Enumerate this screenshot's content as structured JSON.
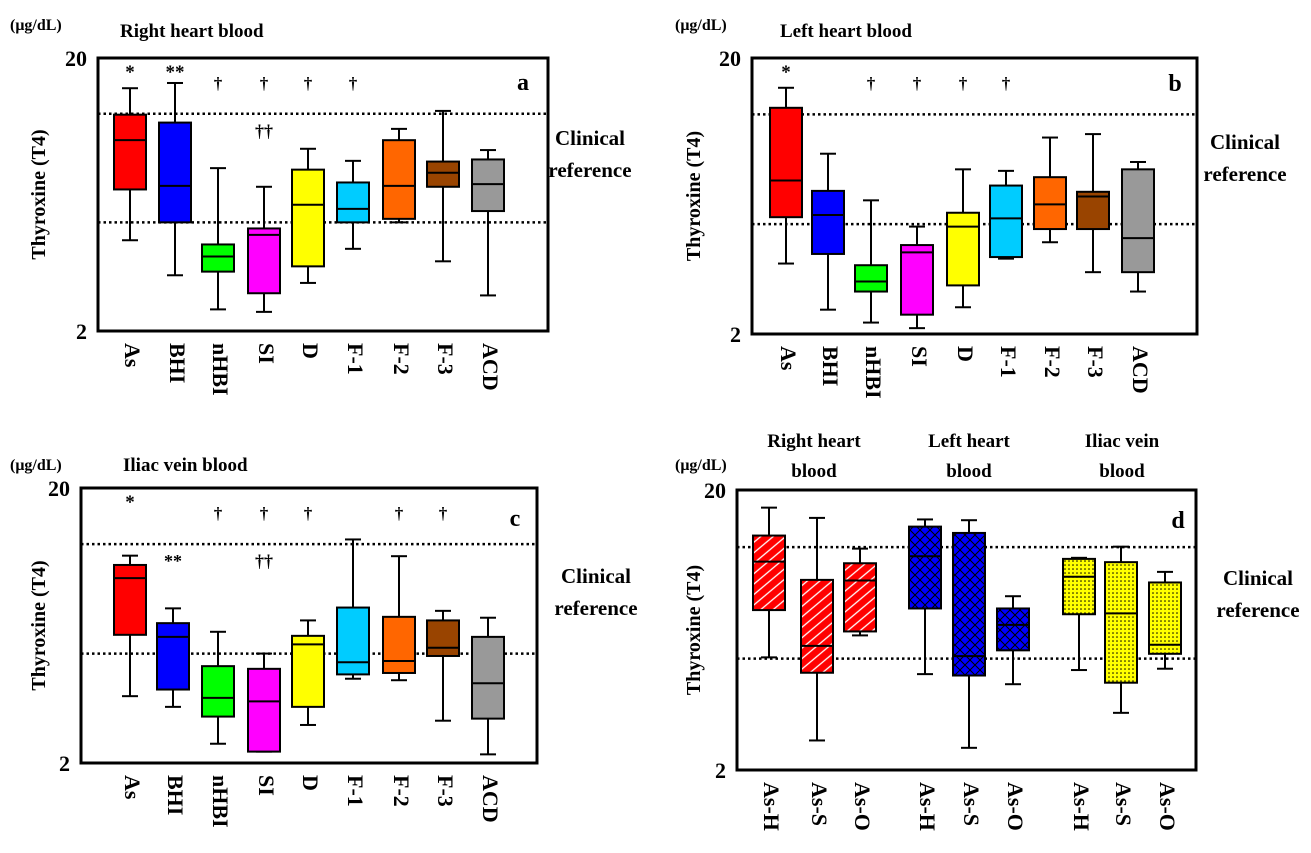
{
  "figure": {
    "unit_label": "(μg/dL)",
    "ylabel": "Thyroxine (T4)",
    "reference_label_line1": "Clinical",
    "reference_label_line2": "reference"
  },
  "chart_data": [
    {
      "panel": "a",
      "type": "box",
      "title": "Right heart blood",
      "ylabel": "Thyroxine (T4)",
      "yscale": "log",
      "ylim": [
        2,
        20
      ],
      "y_ticks": [
        "2",
        "20"
      ],
      "reference_range": [
        5.0,
        12.5
      ],
      "categories": [
        "As",
        "BHI",
        "nHBI",
        "SI",
        "D",
        "F-1",
        "F-2",
        "F-3",
        "ACD"
      ],
      "boxes": [
        {
          "label": "As",
          "color": "#ff0000",
          "whisker_low": 4.3,
          "q1": 6.6,
          "median": 10.0,
          "q3": 12.4,
          "whisker_high": 15.5,
          "annotation": "*"
        },
        {
          "label": "BHI",
          "color": "#0000ff",
          "whisker_low": 3.2,
          "q1": 5.0,
          "median": 6.8,
          "q3": 11.6,
          "whisker_high": 16.2,
          "annotation": "**"
        },
        {
          "label": "nHBI",
          "color": "#00ff00",
          "whisker_low": 2.4,
          "q1": 3.3,
          "median": 3.75,
          "q3": 4.15,
          "whisker_high": 7.9,
          "annotation": "†"
        },
        {
          "label": "SI",
          "color": "#ff00ff",
          "whisker_low": 2.35,
          "q1": 2.75,
          "median": 4.5,
          "q3": 4.75,
          "whisker_high": 6.75,
          "annotation": "†",
          "annotation2": "††"
        },
        {
          "label": "D",
          "color": "#ffff00",
          "whisker_low": 3.0,
          "q1": 3.45,
          "median": 5.8,
          "q3": 7.8,
          "whisker_high": 9.3,
          "annotation": "†"
        },
        {
          "label": "F-1",
          "color": "#00ccff",
          "whisker_low": 4.0,
          "q1": 5.0,
          "median": 5.6,
          "q3": 7.0,
          "whisker_high": 8.4,
          "annotation": "†"
        },
        {
          "label": "F-2",
          "color": "#ff6600",
          "whisker_low": 5.0,
          "q1": 5.15,
          "median": 6.8,
          "q3": 10.0,
          "whisker_high": 11.0
        },
        {
          "label": "F-3",
          "color": "#994400",
          "whisker_low": 3.6,
          "q1": 6.75,
          "median": 7.6,
          "q3": 8.35,
          "whisker_high": 12.8
        },
        {
          "label": "ACD",
          "color": "#999999",
          "whisker_low": 2.7,
          "q1": 5.5,
          "median": 6.9,
          "q3": 8.5,
          "whisker_high": 9.2
        }
      ]
    },
    {
      "panel": "b",
      "type": "box",
      "title": "Left heart blood",
      "ylabel": "Thyroxine (T4)",
      "yscale": "log",
      "ylim": [
        2,
        20
      ],
      "y_ticks": [
        "2",
        "20"
      ],
      "reference_range": [
        5.0,
        12.5
      ],
      "categories": [
        "As",
        "BHI",
        "nHBI",
        "SI",
        "D",
        "F-1",
        "F-2",
        "F-3",
        "ACD"
      ],
      "boxes": [
        {
          "label": "As",
          "color": "#ff0000",
          "whisker_low": 3.6,
          "q1": 5.3,
          "median": 7.2,
          "q3": 13.2,
          "whisker_high": 15.6,
          "annotation": "*"
        },
        {
          "label": "BHI",
          "color": "#0000ff",
          "whisker_low": 2.45,
          "q1": 3.9,
          "median": 5.4,
          "q3": 6.6,
          "whisker_high": 9.0
        },
        {
          "label": "nHBI",
          "color": "#00ff00",
          "whisker_low": 2.2,
          "q1": 2.85,
          "median": 3.1,
          "q3": 3.55,
          "whisker_high": 6.1,
          "annotation": "†"
        },
        {
          "label": "SI",
          "color": "#ff00ff",
          "whisker_low": 2.1,
          "q1": 2.35,
          "median": 3.95,
          "q3": 4.2,
          "whisker_high": 4.9,
          "annotation": "†"
        },
        {
          "label": "D",
          "color": "#ffff00",
          "whisker_low": 2.5,
          "q1": 3.0,
          "median": 4.9,
          "q3": 5.5,
          "whisker_high": 7.9,
          "annotation": "†"
        },
        {
          "label": "F-1",
          "color": "#00ccff",
          "whisker_low": 3.75,
          "q1": 3.8,
          "median": 5.25,
          "q3": 6.9,
          "whisker_high": 7.8,
          "annotation": "†"
        },
        {
          "label": "F-2",
          "color": "#ff6600",
          "whisker_low": 4.3,
          "q1": 4.8,
          "median": 5.9,
          "q3": 7.4,
          "whisker_high": 10.3
        },
        {
          "label": "F-3",
          "color": "#994400",
          "whisker_low": 3.35,
          "q1": 4.8,
          "median": 6.3,
          "q3": 6.55,
          "whisker_high": 10.6
        },
        {
          "label": "ACD",
          "color": "#999999",
          "whisker_low": 2.85,
          "q1": 3.35,
          "median": 4.45,
          "q3": 7.9,
          "whisker_high": 8.4
        }
      ]
    },
    {
      "panel": "c",
      "type": "box",
      "title": "Iliac vein blood",
      "ylabel": "Thyroxine (T4)",
      "yscale": "log",
      "ylim": [
        2,
        20
      ],
      "y_ticks": [
        "2",
        "20"
      ],
      "reference_range": [
        5.0,
        12.5
      ],
      "categories": [
        "As",
        "BHI",
        "nHBI",
        "SI",
        "D",
        "F-1",
        "F-2",
        "F-3",
        "ACD"
      ],
      "boxes": [
        {
          "label": "As",
          "color": "#ff0000",
          "whisker_low": 3.5,
          "q1": 5.85,
          "median": 9.4,
          "q3": 10.5,
          "whisker_high": 11.35,
          "annotation": "*"
        },
        {
          "label": "BHI",
          "color": "#0000ff",
          "whisker_low": 3.2,
          "q1": 3.7,
          "median": 5.75,
          "q3": 6.45,
          "whisker_high": 7.3,
          "annotation2": "**"
        },
        {
          "label": "nHBI",
          "color": "#00ff00",
          "whisker_low": 2.35,
          "q1": 2.95,
          "median": 3.45,
          "q3": 4.5,
          "whisker_high": 6.0,
          "annotation": "†"
        },
        {
          "label": "SI",
          "color": "#ff00ff",
          "whisker_low": 2.2,
          "q1": 2.2,
          "median": 3.35,
          "q3": 4.4,
          "whisker_high": 5.0,
          "annotation": "†",
          "annotation2": "††"
        },
        {
          "label": "D",
          "color": "#ffff00",
          "whisker_low": 2.75,
          "q1": 3.2,
          "median": 5.4,
          "q3": 5.8,
          "whisker_high": 6.6,
          "annotation": "†"
        },
        {
          "label": "F-1",
          "color": "#00ccff",
          "whisker_low": 4.05,
          "q1": 4.2,
          "median": 4.65,
          "q3": 7.35,
          "whisker_high": 13.0
        },
        {
          "label": "F-2",
          "color": "#ff6600",
          "whisker_low": 4.0,
          "q1": 4.25,
          "median": 4.7,
          "q3": 6.8,
          "whisker_high": 11.3,
          "annotation": "†"
        },
        {
          "label": "F-3",
          "color": "#994400",
          "whisker_low": 2.85,
          "q1": 4.9,
          "median": 5.25,
          "q3": 6.6,
          "whisker_high": 7.15,
          "annotation": "†"
        },
        {
          "label": "ACD",
          "color": "#999999",
          "whisker_low": 2.15,
          "q1": 2.9,
          "median": 3.9,
          "q3": 5.75,
          "whisker_high": 6.75
        }
      ]
    },
    {
      "panel": "d",
      "type": "box",
      "title": "",
      "ylabel": "Thyroxine (T4)",
      "yscale": "log",
      "ylim": [
        2,
        20
      ],
      "y_ticks": [
        "2",
        "20"
      ],
      "reference_range": [
        5.0,
        12.5
      ],
      "groups": [
        {
          "title_line1": "Right heart",
          "title_line2": "blood",
          "color": "#ff0000"
        },
        {
          "title_line1": "Left heart",
          "title_line2": "blood",
          "color": "#0000ff"
        },
        {
          "title_line1": "Iliac vein",
          "title_line2": "blood",
          "color": "#ffff00"
        }
      ],
      "categories": [
        "As-H",
        "As-S",
        "As-O",
        "As-H",
        "As-S",
        "As-O",
        "As-H",
        "As-S",
        "As-O"
      ],
      "boxes": [
        {
          "label": "As-H",
          "group": 0,
          "color": "#ff0000",
          "pattern": "hatch",
          "whisker_low": 5.05,
          "q1": 7.45,
          "median": 11.1,
          "q3": 13.75,
          "whisker_high": 17.3
        },
        {
          "label": "As-S",
          "group": 0,
          "color": "#ff0000",
          "pattern": "hatch",
          "whisker_low": 2.55,
          "q1": 4.45,
          "median": 5.55,
          "q3": 9.55,
          "whisker_high": 15.9
        },
        {
          "label": "As-O",
          "group": 0,
          "color": "#ff0000",
          "pattern": "hatch",
          "whisker_low": 6.05,
          "q1": 6.25,
          "median": 9.5,
          "q3": 10.95,
          "whisker_high": 12.35
        },
        {
          "label": "As-H",
          "group": 1,
          "color": "#0000ff",
          "pattern": "cross",
          "whisker_low": 4.4,
          "q1": 7.55,
          "median": 11.6,
          "q3": 14.8,
          "whisker_high": 15.7
        },
        {
          "label": "As-S",
          "group": 1,
          "color": "#0000ff",
          "pattern": "cross",
          "whisker_low": 2.4,
          "q1": 4.35,
          "median": 5.1,
          "q3": 14.05,
          "whisker_high": 15.6
        },
        {
          "label": "As-O",
          "group": 1,
          "color": "#0000ff",
          "pattern": "cross",
          "whisker_low": 4.05,
          "q1": 5.35,
          "median": 6.6,
          "q3": 7.55,
          "whisker_high": 8.35
        },
        {
          "label": "As-H",
          "group": 2,
          "color": "#ffff00",
          "pattern": "dots",
          "whisker_low": 4.55,
          "q1": 7.2,
          "median": 9.8,
          "q3": 11.35,
          "whisker_high": 11.45
        },
        {
          "label": "As-S",
          "group": 2,
          "color": "#ffff00",
          "pattern": "dots",
          "whisker_low": 3.2,
          "q1": 4.1,
          "median": 7.25,
          "q3": 11.05,
          "whisker_high": 12.55
        },
        {
          "label": "As-O",
          "group": 2,
          "color": "#ffff00",
          "pattern": "dots",
          "whisker_low": 4.6,
          "q1": 5.2,
          "median": 5.6,
          "q3": 9.35,
          "whisker_high": 10.2
        }
      ]
    }
  ]
}
